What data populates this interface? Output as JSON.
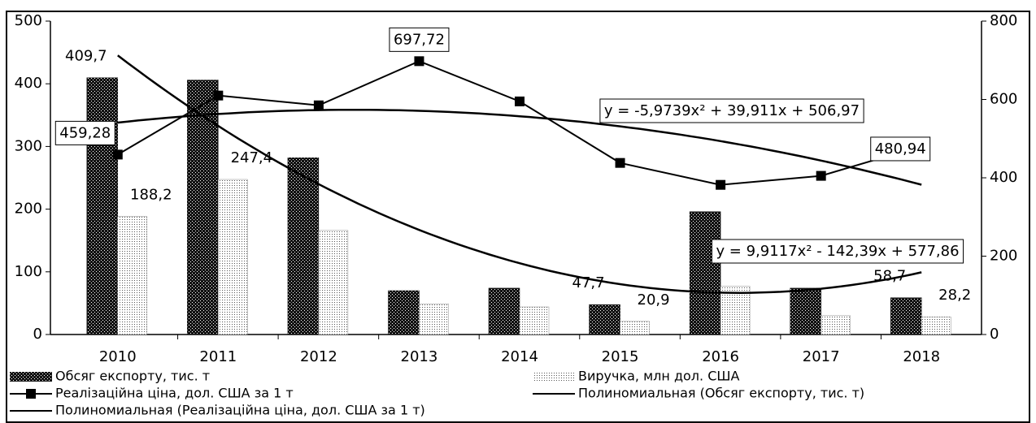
{
  "chart_data": {
    "type": "bar",
    "categories": [
      "2010",
      "2011",
      "2012",
      "2013",
      "2014",
      "2015",
      "2016",
      "2017",
      "2018"
    ],
    "series": [
      {
        "name": "Обсяг експорту, тис. т",
        "type": "bar",
        "color": "#111111",
        "values": [
          409.7,
          406,
          282,
          70,
          74,
          47.7,
          196,
          74,
          58.7
        ],
        "value_labels": [
          "409,7",
          null,
          null,
          null,
          null,
          "47,7",
          null,
          null,
          "58,7"
        ]
      },
      {
        "name": "Виручка, млн дол. США",
        "type": "bar",
        "color": "#888888",
        "values": [
          188.2,
          247.4,
          166,
          49,
          44,
          20.9,
          77,
          30,
          28.2
        ],
        "value_labels": [
          "188,2",
          "247,4",
          null,
          null,
          null,
          "20,9",
          null,
          null,
          "28,2"
        ]
      },
      {
        "name": "Реалізаційна ціна, дол. США за 1 т",
        "type": "line",
        "axis": "y2",
        "color": "#000000",
        "values": [
          459.28,
          610,
          585,
          697.72,
          595,
          438,
          382,
          405,
          480.94
        ],
        "value_labels": [
          "459,28",
          null,
          null,
          "697,72",
          null,
          null,
          null,
          null,
          "480,94"
        ]
      }
    ],
    "trendlines": [
      {
        "name": "Полиномиальная (Обсяг експорту, тис. т)",
        "equation": "y = 9,9117x² - 142,39x + 577,86",
        "coefficients": [
          9.9117,
          -142.39,
          577.86
        ]
      },
      {
        "name": "Полиномиальная (Реалізаційна ціна, дол. США за 1 т)",
        "axis": "y2",
        "equation": "y = -5,9739x² + 39,911x + 506,97",
        "coefficients": [
          -5.9739,
          39.911,
          506.97
        ]
      }
    ],
    "ylim": [
      0,
      500
    ],
    "yticks": [
      0,
      100,
      200,
      300,
      400,
      500
    ],
    "y2lim": [
      0,
      800
    ],
    "y2ticks": [
      0,
      200,
      400,
      600,
      800
    ],
    "legend": "bottom"
  }
}
